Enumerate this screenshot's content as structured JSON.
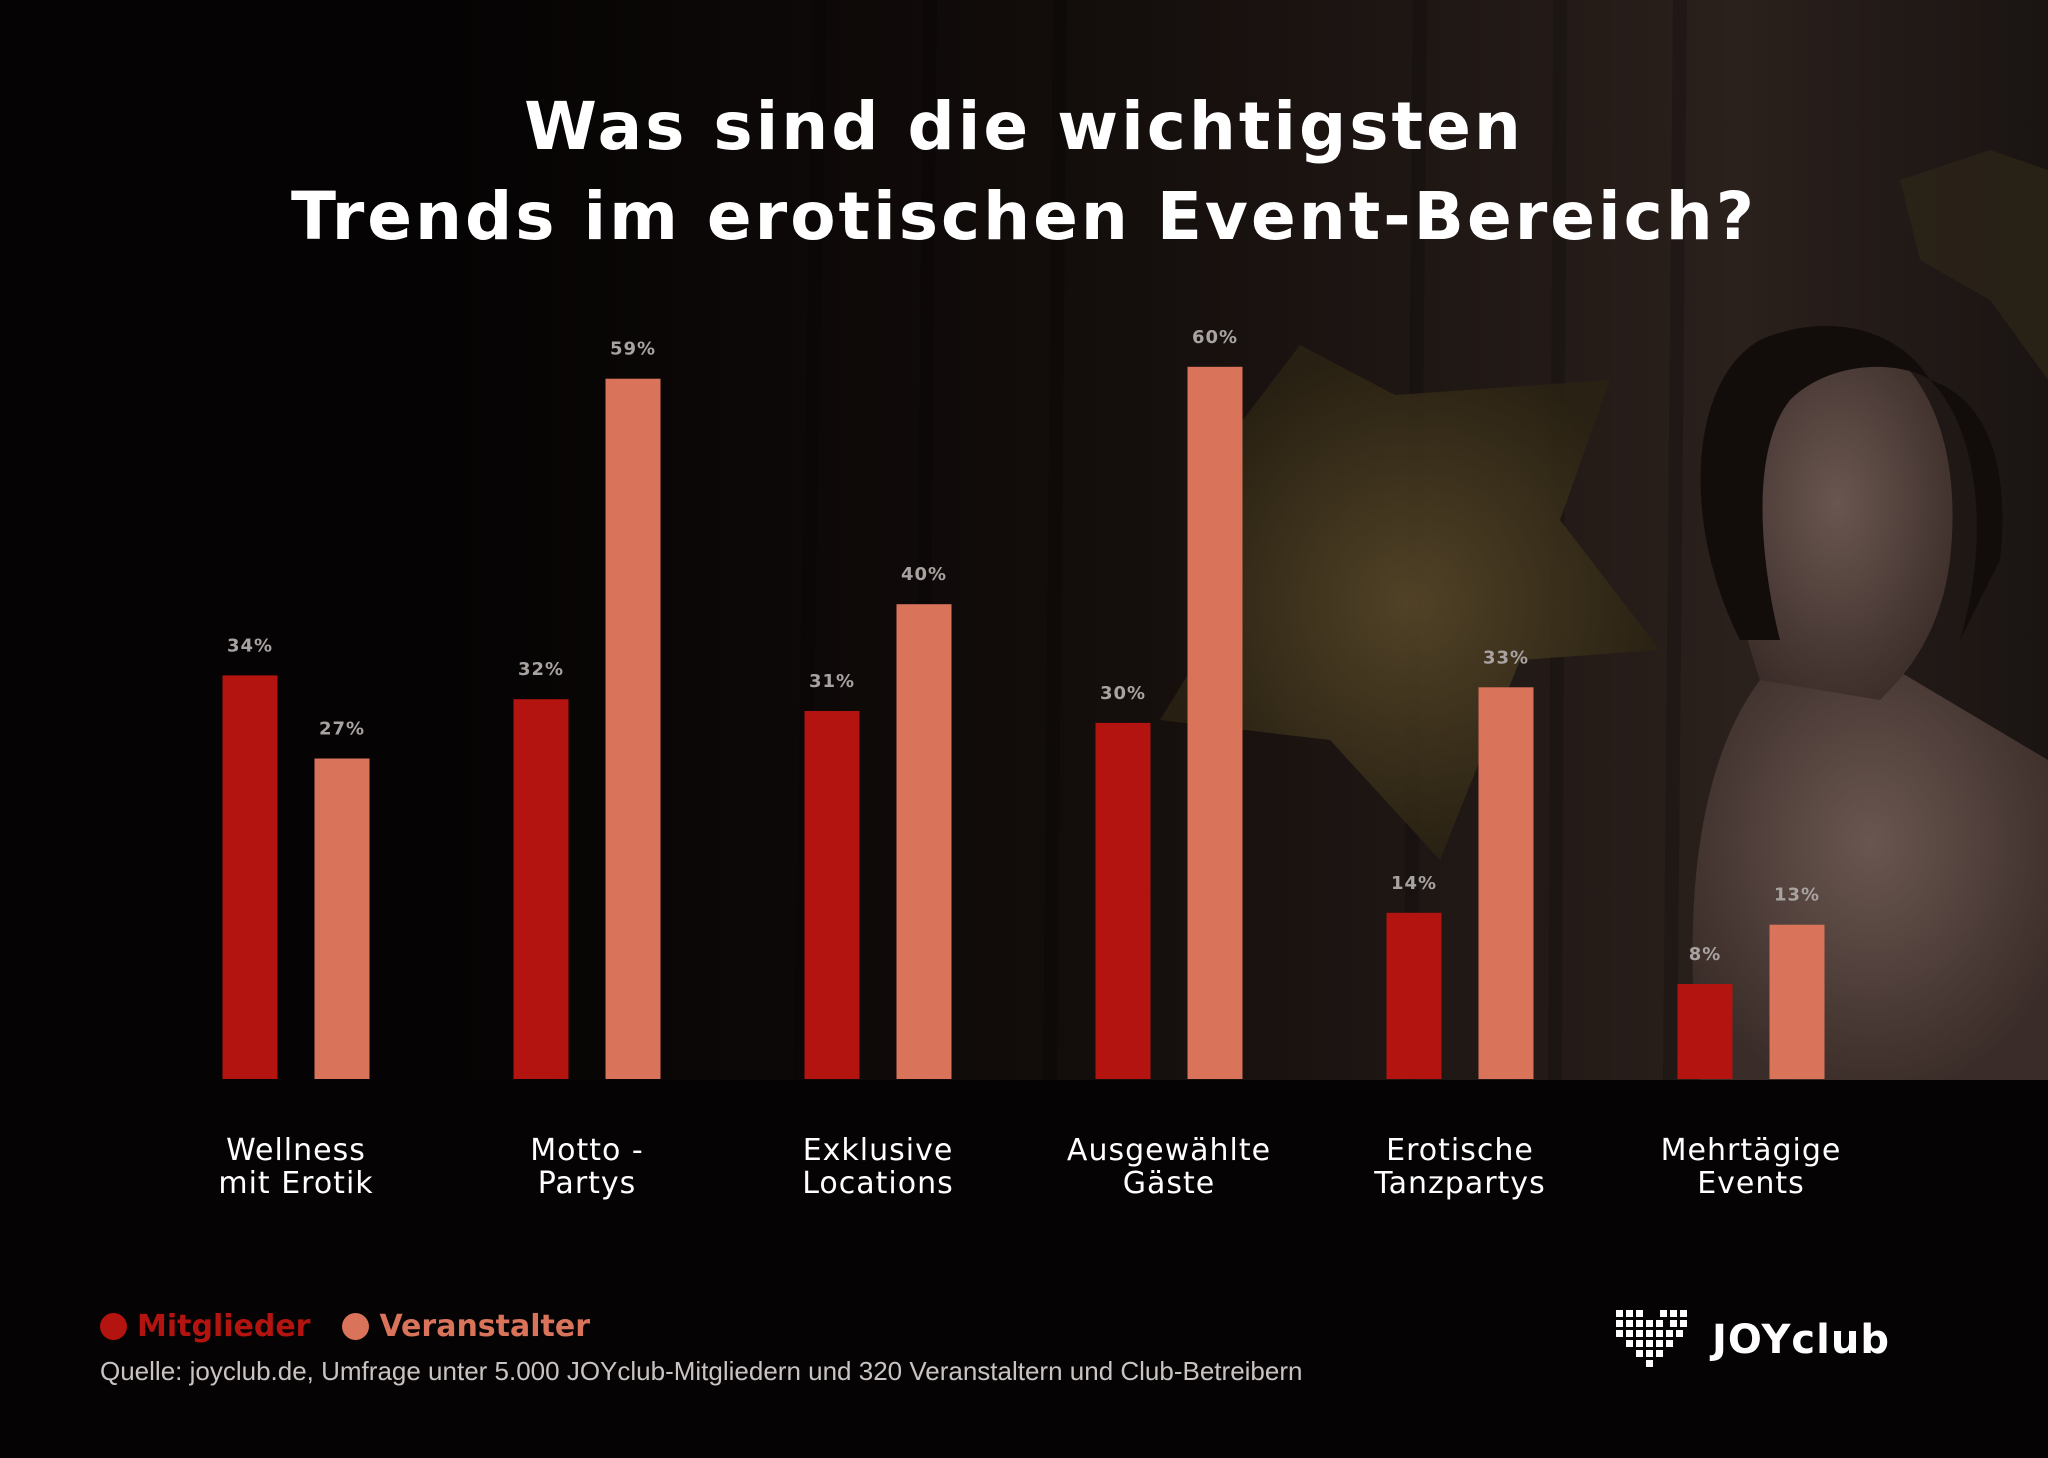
{
  "title": {
    "line1": "Was sind die wichtigsten",
    "line2": "Trends im erotischen Event-Bereich?"
  },
  "chart_data": {
    "type": "bar",
    "title": "Was sind die wichtigsten Trends im erotischen Event-Bereich?",
    "categories": [
      [
        "Wellness",
        "mit Erotik"
      ],
      [
        "Motto -",
        "Partys"
      ],
      [
        "Exklusive",
        "Locations"
      ],
      [
        "Ausgewählte",
        "Gäste"
      ],
      [
        "Erotische",
        "Tanzpartys"
      ],
      [
        "Mehrtägige",
        "Events"
      ]
    ],
    "series": [
      {
        "name": "Mitglieder",
        "color": "#b3140f",
        "values": [
          34,
          32,
          31,
          30,
          14,
          8
        ]
      },
      {
        "name": "Veranstalter",
        "color": "#d9735a",
        "values": [
          27,
          59,
          40,
          60,
          33,
          13
        ]
      }
    ],
    "value_suffix": "%",
    "ylim": [
      0,
      60
    ],
    "grid": false,
    "legend_position": "bottom-left",
    "label_color": "#a8a3a1"
  },
  "legend": {
    "items": [
      {
        "label": "Mitglieder",
        "color": "#b3140f"
      },
      {
        "label": "Veranstalter",
        "color": "#d9735a"
      }
    ]
  },
  "source": "Quelle: joyclub.de, Umfrage unter 5.000 JOYclub-Mitgliedern und 320 Veranstaltern und Club-Betreibern",
  "logo": {
    "text": "JOYclub",
    "icon": "heart-dots-icon"
  }
}
